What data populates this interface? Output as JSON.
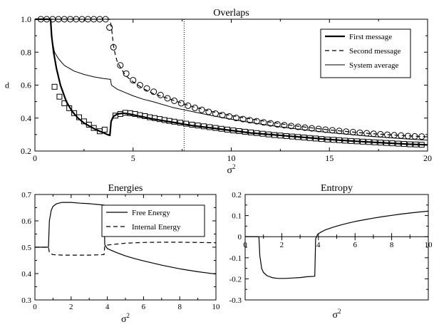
{
  "chart_data": [
    {
      "type": "line",
      "title": "Overlaps",
      "xlabel": "σ",
      "xlabel_sup": "2",
      "ylabel": "d",
      "xlim": [
        0,
        20
      ],
      "ylim": [
        0.2,
        1.0
      ],
      "xticks": [
        0,
        5,
        10,
        15,
        20
      ],
      "yticks": [
        0.2,
        0.4,
        0.6,
        0.8,
        1.0
      ],
      "xtick_labels": [
        "0",
        "5",
        "10",
        "15",
        "20"
      ],
      "ytick_labels": [
        "0.2",
        "0.4",
        "0.6",
        "0.8",
        "1.0"
      ],
      "vline_x": 7.6,
      "legend_position": "top-right",
      "series": [
        {
          "name": "First message",
          "style": "solid-thick",
          "x": [
            0,
            0.4,
            0.8,
            0.85,
            0.95,
            1.1,
            1.3,
            1.6,
            1.9,
            2.2,
            2.5,
            2.8,
            3.1,
            3.4,
            3.7,
            3.82,
            3.88,
            4.0,
            4.2,
            4.5,
            4.8,
            5.2,
            5.6,
            6.0,
            7.0,
            8.0,
            9.0,
            10.0,
            11.0,
            12.0,
            13.0,
            14.0,
            15.0,
            16.0,
            17.0,
            18.0,
            19.0,
            20.0
          ],
          "y": [
            1.0,
            1.0,
            1.0,
            0.9,
            0.8,
            0.7,
            0.6,
            0.5,
            0.44,
            0.4,
            0.37,
            0.35,
            0.33,
            0.315,
            0.3,
            0.295,
            0.38,
            0.41,
            0.425,
            0.43,
            0.425,
            0.415,
            0.405,
            0.395,
            0.375,
            0.355,
            0.34,
            0.325,
            0.31,
            0.3,
            0.29,
            0.28,
            0.27,
            0.262,
            0.255,
            0.248,
            0.242,
            0.237
          ]
        },
        {
          "name": "Second message",
          "style": "dashed",
          "x": [
            0,
            1.0,
            2.0,
            3.0,
            3.5,
            3.82,
            3.9,
            4.0,
            4.1,
            4.2,
            4.4,
            4.6,
            5.0,
            5.5,
            6.0,
            7.0,
            8.0,
            9.0,
            10.0,
            11.0,
            12.0,
            13.0,
            14.0,
            15.0,
            16.0,
            17.0,
            18.0,
            19.0,
            20.0
          ],
          "y": [
            1.0,
            1.0,
            1.0,
            1.0,
            1.0,
            1.0,
            0.95,
            0.84,
            0.78,
            0.74,
            0.7,
            0.66,
            0.62,
            0.58,
            0.55,
            0.51,
            0.47,
            0.44,
            0.415,
            0.395,
            0.375,
            0.357,
            0.342,
            0.328,
            0.317,
            0.307,
            0.299,
            0.292,
            0.286
          ]
        },
        {
          "name": "System average",
          "style": "solid-thin",
          "x": [
            0,
            0.4,
            0.8,
            0.85,
            0.9,
            1.0,
            1.2,
            1.5,
            2.0,
            2.5,
            3.0,
            3.5,
            3.85,
            3.9,
            4.2,
            4.6,
            5.0,
            5.5,
            6.0,
            7.0,
            8.0,
            9.0,
            10.0,
            11.0,
            12.0,
            13.0,
            14.0,
            15.0,
            16.0,
            17.0,
            18.0,
            19.0,
            20.0
          ],
          "y": [
            1.0,
            1.0,
            1.0,
            0.92,
            0.86,
            0.8,
            0.76,
            0.72,
            0.685,
            0.665,
            0.65,
            0.64,
            0.635,
            0.6,
            0.575,
            0.555,
            0.535,
            0.515,
            0.5,
            0.465,
            0.44,
            0.415,
            0.393,
            0.373,
            0.355,
            0.339,
            0.325,
            0.312,
            0.301,
            0.29,
            0.281,
            0.273,
            0.266
          ]
        }
      ],
      "marker_series": [
        {
          "marker": "circle",
          "x": [
            0.3,
            0.6,
            0.9,
            1.2,
            1.5,
            1.8,
            2.1,
            2.4,
            2.7,
            3.0,
            3.3,
            3.6,
            3.8,
            4.0,
            4.35,
            4.65,
            5.0,
            5.35,
            5.7,
            6.05,
            6.4,
            6.75,
            7.1,
            7.45,
            7.8,
            8.15,
            8.5,
            8.85,
            9.2,
            9.55,
            9.9,
            10.25,
            10.6,
            10.95,
            11.3,
            11.65,
            12.0,
            12.35,
            12.7,
            13.05,
            13.4,
            13.75,
            14.1,
            14.45,
            14.8,
            15.15,
            15.5,
            15.85,
            16.2,
            16.55,
            16.9,
            17.25,
            17.6,
            17.95,
            18.3,
            18.65,
            19.0,
            19.35,
            19.7
          ],
          "y": [
            1.0,
            1.0,
            1.0,
            1.0,
            1.0,
            1.0,
            1.0,
            1.0,
            1.0,
            1.0,
            1.0,
            1.0,
            0.95,
            0.83,
            0.72,
            0.67,
            0.63,
            0.6,
            0.58,
            0.56,
            0.54,
            0.52,
            0.505,
            0.49,
            0.475,
            0.462,
            0.45,
            0.438,
            0.427,
            0.418,
            0.41,
            0.401,
            0.394,
            0.387,
            0.381,
            0.374,
            0.368,
            0.362,
            0.357,
            0.352,
            0.347,
            0.342,
            0.338,
            0.334,
            0.33,
            0.326,
            0.322,
            0.318,
            0.315,
            0.311,
            0.308,
            0.305,
            0.302,
            0.299,
            0.296,
            0.294,
            0.291,
            0.289,
            0.288
          ]
        },
        {
          "marker": "square",
          "x": [
            1.0,
            1.25,
            1.5,
            1.75,
            2.0,
            2.25,
            2.5,
            2.75,
            3.0,
            3.3,
            3.55,
            4.1,
            4.35,
            4.6,
            4.85,
            5.1,
            5.35,
            5.6,
            5.85,
            6.1,
            6.35,
            6.6,
            6.85,
            7.1,
            7.4,
            7.7,
            8.0,
            8.3,
            8.6,
            8.9,
            9.2,
            9.5,
            9.8,
            10.1,
            10.4,
            10.7,
            11.0,
            11.3,
            11.6,
            11.9,
            12.2,
            12.5,
            12.8,
            13.1,
            13.4,
            13.7,
            14.0,
            14.3,
            14.6,
            14.9,
            15.2,
            15.5,
            15.8,
            16.1,
            16.4,
            16.7,
            17.0,
            17.3,
            17.6,
            17.9,
            18.2,
            18.5,
            18.8,
            19.1,
            19.4,
            19.7
          ],
          "y": [
            0.59,
            0.53,
            0.49,
            0.46,
            0.43,
            0.405,
            0.38,
            0.36,
            0.34,
            0.32,
            0.33,
            0.415,
            0.425,
            0.432,
            0.43,
            0.425,
            0.418,
            0.412,
            0.405,
            0.4,
            0.394,
            0.388,
            0.383,
            0.378,
            0.372,
            0.366,
            0.36,
            0.355,
            0.35,
            0.345,
            0.34,
            0.335,
            0.33,
            0.325,
            0.321,
            0.317,
            0.313,
            0.309,
            0.305,
            0.301,
            0.297,
            0.294,
            0.291,
            0.288,
            0.285,
            0.282,
            0.279,
            0.276,
            0.273,
            0.27,
            0.268,
            0.266,
            0.263,
            0.261,
            0.259,
            0.257,
            0.255,
            0.253,
            0.251,
            0.249,
            0.247,
            0.245,
            0.243,
            0.241,
            0.24,
            0.238
          ]
        }
      ]
    },
    {
      "type": "line",
      "title": "Energies",
      "xlabel": "σ",
      "xlabel_sup": "2",
      "ylabel": "",
      "xlim": [
        0,
        10
      ],
      "ylim": [
        0.3,
        0.7
      ],
      "xticks": [
        0,
        2,
        4,
        6,
        8,
        10
      ],
      "yticks": [
        0.3,
        0.4,
        0.5,
        0.6,
        0.7
      ],
      "xtick_labels": [
        "0",
        "2",
        "4",
        "6",
        "8",
        "10"
      ],
      "ytick_labels": [
        "0.3",
        "0.4",
        "0.5",
        "0.6",
        "0.7"
      ],
      "legend_position": "top-right",
      "series": [
        {
          "name": "Free Energy",
          "style": "solid",
          "x": [
            0,
            0.4,
            0.75,
            0.8,
            0.9,
            1.0,
            1.2,
            1.5,
            2.0,
            2.5,
            3.0,
            3.5,
            3.82,
            3.86,
            4.0,
            4.5,
            5.0,
            5.5,
            6.0,
            7.0,
            8.0,
            9.0,
            10.0
          ],
          "y": [
            0.5,
            0.5,
            0.5,
            0.6,
            0.64,
            0.655,
            0.665,
            0.67,
            0.67,
            0.667,
            0.665,
            0.662,
            0.66,
            0.51,
            0.495,
            0.48,
            0.467,
            0.457,
            0.448,
            0.432,
            0.418,
            0.407,
            0.398
          ]
        },
        {
          "name": "Internal Energy",
          "style": "dashed",
          "x": [
            0,
            0.4,
            0.75,
            0.8,
            0.9,
            1.0,
            1.5,
            2.0,
            3.0,
            3.5,
            3.82,
            3.86,
            4.0,
            4.5,
            5.0,
            6.0,
            7.0,
            8.0,
            9.0,
            10.0
          ],
          "y": [
            0.5,
            0.5,
            0.5,
            0.48,
            0.475,
            0.472,
            0.47,
            0.47,
            0.47,
            0.471,
            0.472,
            0.505,
            0.508,
            0.512,
            0.515,
            0.518,
            0.519,
            0.519,
            0.518,
            0.517
          ]
        }
      ]
    },
    {
      "type": "line",
      "title": "Entropy",
      "xlabel": "σ",
      "xlabel_sup": "2",
      "ylabel": "",
      "xlim": [
        0,
        10
      ],
      "ylim": [
        -0.3,
        0.2
      ],
      "xticks": [
        0,
        2,
        4,
        6,
        8,
        10
      ],
      "yticks": [
        -0.3,
        -0.2,
        -0.1,
        0,
        0.1,
        0.2
      ],
      "xtick_labels": [
        "0",
        "2",
        "4",
        "6",
        "8",
        "10"
      ],
      "ytick_labels": [
        "-0.3",
        "-0.2",
        "-0.1",
        "0",
        "0.1",
        "0.2"
      ],
      "series": [
        {
          "name": "",
          "style": "solid",
          "x": [
            0,
            0.75,
            0.8,
            0.9,
            1.0,
            1.2,
            1.5,
            1.8,
            2.2,
            2.6,
            3.0,
            3.4,
            3.8,
            3.85,
            3.95,
            4.1,
            4.4,
            4.8,
            5.2,
            5.6,
            6.0,
            6.5,
            7.0,
            7.5,
            8.0,
            8.5,
            9.0,
            9.5,
            10.0
          ],
          "y": [
            0,
            0,
            -0.09,
            -0.15,
            -0.17,
            -0.185,
            -0.195,
            -0.198,
            -0.198,
            -0.196,
            -0.194,
            -0.19,
            -0.188,
            -0.01,
            0.01,
            0.02,
            0.033,
            0.045,
            0.055,
            0.064,
            0.072,
            0.08,
            0.088,
            0.095,
            0.101,
            0.107,
            0.112,
            0.117,
            0.121
          ]
        }
      ]
    }
  ]
}
